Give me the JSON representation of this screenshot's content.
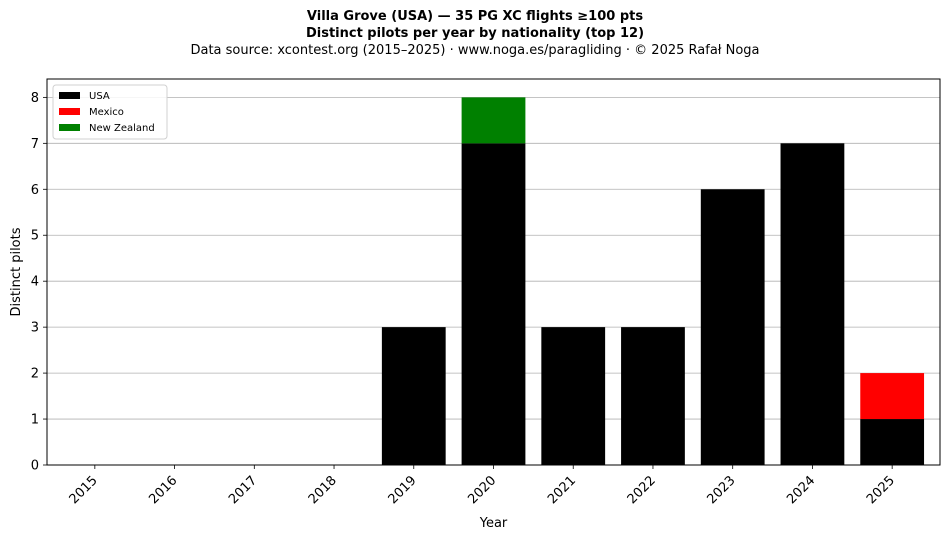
{
  "chart_data": {
    "type": "bar",
    "stacked": true,
    "title_lines": [
      "Villa Grove (USA)  —  35 PG XC flights ≥100 pts",
      "Distinct pilots per year by nationality (top 12)"
    ],
    "subtitle": "Data source: xcontest.org (2015–2025)  ·  www.noga.es/paragliding  ·  © 2025 Rafał Noga",
    "xlabel": "Year",
    "ylabel": "Distinct pilots",
    "categories": [
      "2015",
      "2016",
      "2017",
      "2018",
      "2019",
      "2020",
      "2021",
      "2022",
      "2023",
      "2024",
      "2025"
    ],
    "series": [
      {
        "name": "USA",
        "color": "#000000",
        "values": [
          0,
          0,
          0,
          0,
          3,
          7,
          3,
          3,
          6,
          7,
          1
        ]
      },
      {
        "name": "Mexico",
        "color": "#ff0000",
        "values": [
          0,
          0,
          0,
          0,
          0,
          0,
          0,
          0,
          0,
          0,
          1
        ]
      },
      {
        "name": "New Zealand",
        "color": "#008000",
        "values": [
          0,
          0,
          0,
          0,
          0,
          1,
          0,
          0,
          0,
          0,
          0
        ]
      }
    ],
    "ylim": [
      0,
      8.4
    ],
    "yticks": [
      0,
      1,
      2,
      3,
      4,
      5,
      6,
      7,
      8
    ],
    "grid": "y",
    "legend_position": "top-left"
  }
}
